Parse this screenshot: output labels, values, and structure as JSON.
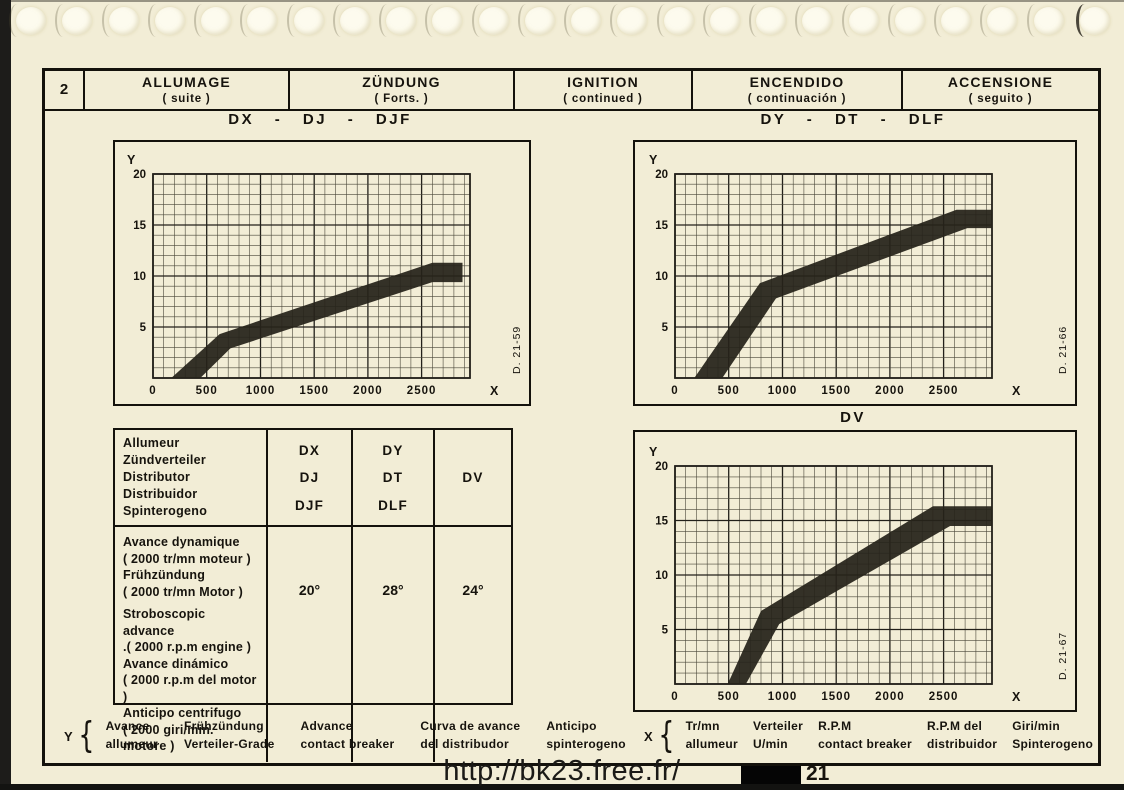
{
  "page": {
    "section_number": "2",
    "holes_count": 24
  },
  "colors": {
    "paper": "#f2edd6",
    "ink": "#16130d",
    "band": "#26221a",
    "grid_minor": "#4a4739",
    "grid_major": "#22201a",
    "hole": "#fdfbee",
    "edge": "#1d1c1a"
  },
  "header": {
    "cells": [
      {
        "title": "ALLUMAGE",
        "subtitle": "( suite )"
      },
      {
        "title": "ZÜNDUNG",
        "subtitle": "( Forts. )"
      },
      {
        "title": "IGNITION",
        "subtitle": "( continued )"
      },
      {
        "title": "ENCENDIDO",
        "subtitle": "( continuación )"
      },
      {
        "title": "ACCENSIONE",
        "subtitle": "( seguito )"
      }
    ]
  },
  "chart_data": [
    {
      "type": "area",
      "title": "DX - DJ - DJF",
      "drawing_ref": "D. 21-59",
      "xlabel": "X",
      "ylabel": "Y",
      "xlim": [
        0,
        2950
      ],
      "ylim": [
        0,
        20
      ],
      "x_ticks": [
        0,
        500,
        1000,
        1500,
        2000,
        2500
      ],
      "y_ticks": [
        5,
        10,
        15,
        20
      ],
      "x_minor_step": 100,
      "y_minor_step": 1,
      "series": [
        {
          "name": "advance-band-upper-limit",
          "points": [
            [
              170,
              0
            ],
            [
              620,
              4.3
            ],
            [
              2600,
              11.3
            ],
            [
              2880,
              11.3
            ]
          ]
        },
        {
          "name": "advance-band-lower-limit",
          "points": [
            [
              440,
              0
            ],
            [
              720,
              2.9
            ],
            [
              2600,
              9.4
            ],
            [
              2880,
              9.4
            ]
          ]
        }
      ]
    },
    {
      "type": "area",
      "title": "DY - DT - DLF",
      "drawing_ref": "D. 21-66",
      "xlabel": "X",
      "ylabel": "Y",
      "xlim": [
        0,
        2950
      ],
      "ylim": [
        0,
        20
      ],
      "x_ticks": [
        0,
        500,
        1000,
        1500,
        2000,
        2500
      ],
      "y_ticks": [
        5,
        10,
        15,
        20
      ],
      "x_minor_step": 100,
      "y_minor_step": 1,
      "series": [
        {
          "name": "advance-band-upper-limit",
          "points": [
            [
              180,
              0
            ],
            [
              790,
              9.3
            ],
            [
              2620,
              16.5
            ],
            [
              2950,
              16.5
            ]
          ]
        },
        {
          "name": "advance-band-lower-limit",
          "points": [
            [
              440,
              0
            ],
            [
              940,
              7.8
            ],
            [
              2720,
              14.7
            ],
            [
              2950,
              14.7
            ]
          ]
        }
      ]
    },
    {
      "type": "area",
      "title": "DV",
      "drawing_ref": "D. 21-67",
      "xlabel": "X",
      "ylabel": "Y",
      "xlim": [
        0,
        2950
      ],
      "ylim": [
        0,
        20
      ],
      "x_ticks": [
        0,
        500,
        1000,
        1500,
        2000,
        2500
      ],
      "y_ticks": [
        5,
        10,
        15,
        20
      ],
      "x_minor_step": 100,
      "y_minor_step": 1,
      "series": [
        {
          "name": "advance-band-upper-limit",
          "points": [
            [
              490,
              0
            ],
            [
              800,
              6.7
            ],
            [
              2400,
              16.3
            ],
            [
              2950,
              16.3
            ]
          ]
        },
        {
          "name": "advance-band-lower-limit",
          "points": [
            [
              660,
              0
            ],
            [
              970,
              5.5
            ],
            [
              2560,
              14.5
            ],
            [
              2950,
              14.5
            ]
          ]
        }
      ]
    }
  ],
  "table": {
    "distributor_labels": [
      "Allumeur",
      "Zündverteiler",
      "Distributor",
      "Distribuidor",
      "Spinterogeno"
    ],
    "columns": [
      {
        "models": [
          "DX",
          "DJ",
          "DJF"
        ],
        "advance": "20°"
      },
      {
        "models": [
          "DY",
          "DT",
          "DLF"
        ],
        "advance": "28°"
      },
      {
        "models": [
          "DV"
        ],
        "advance": "24°"
      }
    ],
    "advance_labels": [
      "Avance dynamique",
      "( 2000 tr/mn moteur )",
      "Frühzündung",
      "( 2000 tr/mn Motor )",
      "Stroboscopic advance",
      ".( 2000 r.p.m engine )",
      "Avance dinámico",
      "( 2000  r.p.m del motor )",
      "Anticipo centrifugo",
      "( 2000 giri/min. motore )"
    ]
  },
  "axis_legend": {
    "y": {
      "symbol": "Y",
      "brace": "{",
      "entries": [
        [
          "Avance",
          "allumeur"
        ],
        [
          "Frühzündung",
          "Verteiler-Grade"
        ],
        [
          "Advance",
          "contact breaker"
        ],
        [
          "Curva de avance",
          "del distribudor"
        ],
        [
          "Anticipo",
          "spinterogeno"
        ]
      ]
    },
    "x": {
      "symbol": "X",
      "brace": "{",
      "entries": [
        [
          "Tr/mn",
          "allumeur"
        ],
        [
          "Verteiler",
          "U/min"
        ],
        [
          "R.P.M",
          "contact breaker"
        ],
        [
          "R.P.M del",
          "distribuidor"
        ],
        [
          "Giri/min",
          "Spinterogeno"
        ]
      ]
    }
  },
  "footer": {
    "url": "http://bk23.free.fr/",
    "page_number": "21"
  }
}
